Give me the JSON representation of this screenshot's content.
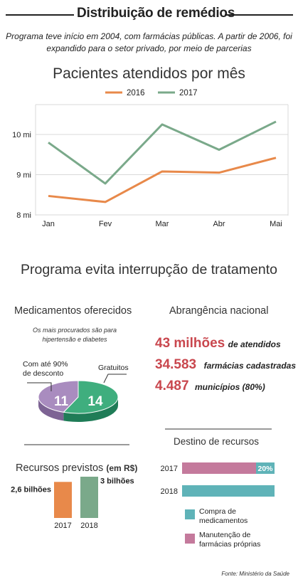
{
  "header": {
    "title": "Distribuição de remédios",
    "subtitle": "Programa teve início em 2004, com farmácias públicas. A partir de 2006, foi expandido para o setor privado, por meio de parcerias"
  },
  "line_section": {
    "title": "Pacientes atendidos por mês"
  },
  "program_section": {
    "title": "Programa evita interrupção de tratamento"
  },
  "medicines": {
    "title": "Medicamentos oferecidos",
    "note": "Os mais procurados são para hipertensão e diabetes",
    "discount_label": "Com até 90% de desconto",
    "free_label": "Gratuitos"
  },
  "coverage": {
    "title": "Abrangência nacional",
    "items": [
      {
        "value": "43 milhões",
        "desc": "de atendidos"
      },
      {
        "value": "34.583",
        "desc": "farmácias cadastradas"
      },
      {
        "value": "4.487",
        "desc": "municípios (80%)"
      }
    ]
  },
  "resources": {
    "title": "Recursos previstos",
    "unit": "(em R$)"
  },
  "destination": {
    "title": "Destino de recursos",
    "legend": [
      "Compra de medicamentos",
      "Manutenção de farmácias próprias"
    ],
    "colors": {
      "purchase": "#5fb3b8",
      "maintenance": "#c47a9c"
    }
  },
  "source": "Fonte: Ministério da Saúde",
  "colors": {
    "orange": "#e8894a",
    "green": "#7aa98a",
    "purple": "#a98cbf",
    "teal_green": "#3fae7e",
    "red": "#c9474e"
  },
  "chart_data": [
    {
      "type": "line",
      "title": "Pacientes atendidos por mês",
      "x": [
        "Jan",
        "Fev",
        "Mar",
        "Abr",
        "Mai"
      ],
      "y_ticks": [
        "8 mi",
        "9 mi",
        "10 mi"
      ],
      "ylim": [
        8,
        10.8
      ],
      "legend_placement": "top",
      "grid": true,
      "series": [
        {
          "name": "2016",
          "color": "#e8894a",
          "values": [
            8.47,
            8.32,
            9.08,
            9.05,
            9.42
          ]
        },
        {
          "name": "2017",
          "color": "#7aa98a",
          "values": [
            9.8,
            8.78,
            10.25,
            9.62,
            10.32
          ]
        }
      ]
    },
    {
      "type": "pie",
      "title": "Medicamentos oferecidos",
      "categories": [
        "Com até 90% de desconto",
        "Gratuitos"
      ],
      "values": [
        11,
        14
      ],
      "value_labels": [
        "11",
        "14"
      ],
      "colors": [
        "#a98cbf",
        "#3fae7e"
      ]
    },
    {
      "type": "bar",
      "title": "Recursos previstos (em R$)",
      "categories": [
        "2017",
        "2018"
      ],
      "values": [
        2.6,
        3.0
      ],
      "value_labels": [
        "2,6 bilhões",
        "3 bilhões"
      ],
      "colors": [
        "#e8894a",
        "#7aa98a"
      ]
    },
    {
      "type": "bar",
      "title": "Destino de recursos",
      "categories": [
        "2017",
        "2018"
      ],
      "series": [
        {
          "name": "Compra de medicamentos",
          "values": [
            20,
            100
          ]
        },
        {
          "name": "Manutenção de farmácias próprias",
          "values": [
            80,
            0
          ]
        }
      ],
      "value_labels": [
        "20%"
      ]
    }
  ]
}
